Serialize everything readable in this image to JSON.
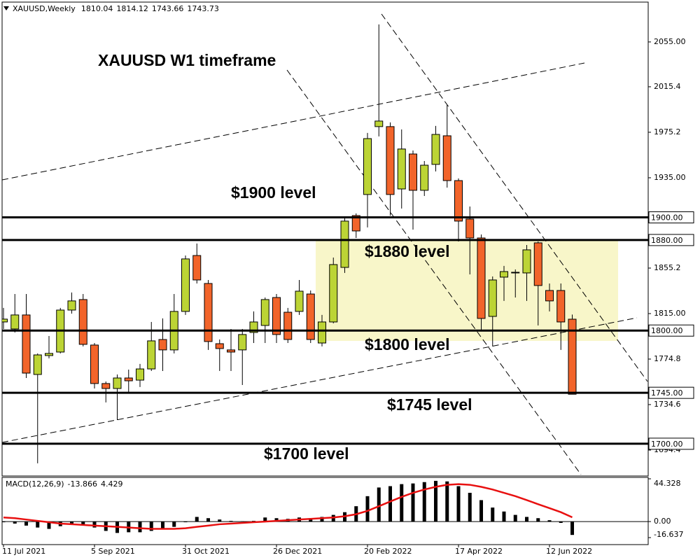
{
  "chart_data": [
    {
      "type": "candlestick",
      "title": "XAUUSD W1 timeframe",
      "symbol": "XAUUSD,Weekly",
      "categories": [
        "11 Jul 2021",
        null,
        null,
        null,
        null,
        null,
        null,
        null,
        "5 Sep 2021",
        null,
        null,
        null,
        null,
        null,
        null,
        null,
        "31 Oct 2021",
        null,
        null,
        null,
        null,
        null,
        null,
        null,
        "26 Dec 2021",
        null,
        null,
        null,
        null,
        null,
        null,
        null,
        "20 Feb 2022",
        null,
        null,
        null,
        null,
        null,
        null,
        null,
        "17 Apr 2022",
        null,
        null,
        null,
        null,
        null,
        null,
        null,
        "12 Jun 2022",
        null,
        null
      ],
      "open": [
        1807.6,
        1801.4,
        1813.8,
        1761.2,
        1777.9,
        1781.0,
        1818.1,
        1827.4,
        1787.2,
        1753.2,
        1748.8,
        1758.1,
        1756.2,
        1766.1,
        1792.1,
        1782.9,
        1816.9,
        1866.3,
        1841.6,
        1788.4,
        1782.9,
        1782.9,
        1798.3,
        1804.5,
        1829.2,
        1816.2,
        1816.9,
        1832.3,
        1789.0,
        1807.6,
        1855.8,
        1901.6,
        1920.2,
        1980.2,
        1980.2,
        1925.1,
        1956.0,
        1923.9,
        1946.8,
        1972.1,
        1932.5,
        1898.5,
        1881.8,
        1812.5,
        1847.2,
        1850.9,
        1850.9,
        1877.5,
        1835.4,
        1835.4,
        1810.04
      ],
      "high": [
        1820.0,
        1832.3,
        1832.3,
        1779.8,
        1795.2,
        1820.0,
        1833.6,
        1832.3,
        1789.0,
        1755.0,
        1761.2,
        1765.5,
        1770.5,
        1807.6,
        1810.7,
        1832.3,
        1866.3,
        1876.9,
        1844.7,
        1792.1,
        1801.4,
        1801.4,
        1816.9,
        1829.2,
        1832.3,
        1820.0,
        1844.7,
        1835.4,
        1813.8,
        1864.5,
        1900.4,
        1903.5,
        1974.6,
        2070.5,
        1983.9,
        1977.7,
        1959.1,
        1949.8,
        1980.8,
        1999.3,
        1934.4,
        1909.6,
        1884.9,
        1847.8,
        1857.1,
        1854.0,
        1875.6,
        1878.7,
        1841.6,
        1841.6,
        1814.12
      ],
      "low": [
        1801.4,
        1798.3,
        1758.1,
        1682.7,
        1775.4,
        1779.8,
        1815.0,
        1786.0,
        1748.8,
        1736.5,
        1721.0,
        1745.7,
        1750.1,
        1764.3,
        1764.3,
        1779.8,
        1813.8,
        1841.6,
        1782.9,
        1764.3,
        1764.3,
        1751.9,
        1789.0,
        1789.0,
        1789.0,
        1789.0,
        1813.8,
        1789.0,
        1786.0,
        1806.4,
        1850.9,
        1881.8,
        1891.1,
        1971.5,
        1901.6,
        1907.8,
        1889.2,
        1918.9,
        1940.6,
        1926.3,
        1878.7,
        1849.6,
        1800.2,
        1786.0,
        1826.2,
        1829.2,
        1826.2,
        1804.5,
        1816.9,
        1782.9,
        1743.66
      ],
      "close": [
        1810.1,
        1813.8,
        1762.4,
        1778.5,
        1779.8,
        1818.1,
        1826.2,
        1787.8,
        1753.2,
        1748.8,
        1758.1,
        1755.6,
        1766.1,
        1790.9,
        1782.9,
        1816.9,
        1863.3,
        1844.7,
        1790.3,
        1784.1,
        1781.0,
        1796.5,
        1807.6,
        1827.4,
        1796.5,
        1792.1,
        1834.8,
        1792.1,
        1807.6,
        1858.3,
        1896.7,
        1888.0,
        1969.6,
        1985.1,
        1920.2,
        1960.4,
        1923.9,
        1946.1,
        1973.3,
        1932.5,
        1896.7,
        1881.8,
        1810.7,
        1844.7,
        1852.1,
        1851.5,
        1871.3,
        1839.8,
        1826.2,
        1807.6,
        1743.73
      ],
      "up_color": "#bcd435",
      "down_color": "#f2642a",
      "ylim": [
        1671.5,
        2090.2
      ],
      "yticks": [
        {
          "value": 2055,
          "label": "2055.00"
        },
        2015.4,
        1975.2,
        {
          "value": 1935,
          "label": "1935.00"
        },
        1855.2,
        {
          "value": 1815,
          "label": "1815.00"
        },
        1774.8,
        1734.6,
        1694.4
      ],
      "levels": [
        {
          "value": 1900,
          "label": "1900.00",
          "text": "$1900 level"
        },
        {
          "value": 1880,
          "label": "1880.00",
          "text": "$1880 level"
        },
        {
          "value": 1800,
          "label": "1800.00",
          "text": "$1800 level"
        },
        {
          "value": 1745,
          "label": "1745.00",
          "text": "$1745 level"
        },
        {
          "value": 1700,
          "label": "1700.00",
          "text": "$1700 level"
        }
      ]
    },
    {
      "type": "macd",
      "name": "MACD(12,26,9)",
      "values": [
        -0.7,
        -2.1,
        -4.2,
        -6.2,
        -7.6,
        -4.8,
        -2.8,
        -3.5,
        -6.2,
        -9.7,
        -11.8,
        -11.1,
        -11.1,
        -9.7,
        -8.3,
        -5.5,
        -0.7,
        4.8,
        3.5,
        2.1,
        0.7,
        0.3,
        0.7,
        4.2,
        3.5,
        2.8,
        4.2,
        3.5,
        4.8,
        6.9,
        9.7,
        15.9,
        26.3,
        35.3,
        36.7,
        38.8,
        39.5,
        40.9,
        42.2,
        41.6,
        36.7,
        29.8,
        22.2,
        14.5,
        10.4,
        6.9,
        4.8,
        3.5,
        1.4,
        -1.4,
        -13.866
      ],
      "signal": [
        4.2,
        3.5,
        2.1,
        0.7,
        -0.7,
        -2.1,
        -2.8,
        -3.5,
        -4.2,
        -4.8,
        -5.5,
        -6.2,
        -6.9,
        -7.6,
        -7.6,
        -7.6,
        -6.9,
        -5.5,
        -4.2,
        -2.8,
        -2.1,
        -1.4,
        -0.7,
        0,
        0.7,
        1.4,
        2.1,
        2.8,
        3.5,
        4.2,
        5.5,
        7.6,
        11.1,
        15.9,
        20.8,
        25.6,
        29.8,
        33.2,
        36.0,
        38.1,
        38.8,
        38.1,
        36.0,
        33.2,
        29.8,
        26.3,
        22.2,
        18.0,
        13.9,
        9.7,
        4.429
      ],
      "color": "#000000",
      "signal_color": "#e81010",
      "ylim": [
        -16.637,
        44.328
      ],
      "yticks": [
        44.328,
        {
          "value": 0,
          "label": "0.00"
        },
        -16.637
      ]
    }
  ]
}
